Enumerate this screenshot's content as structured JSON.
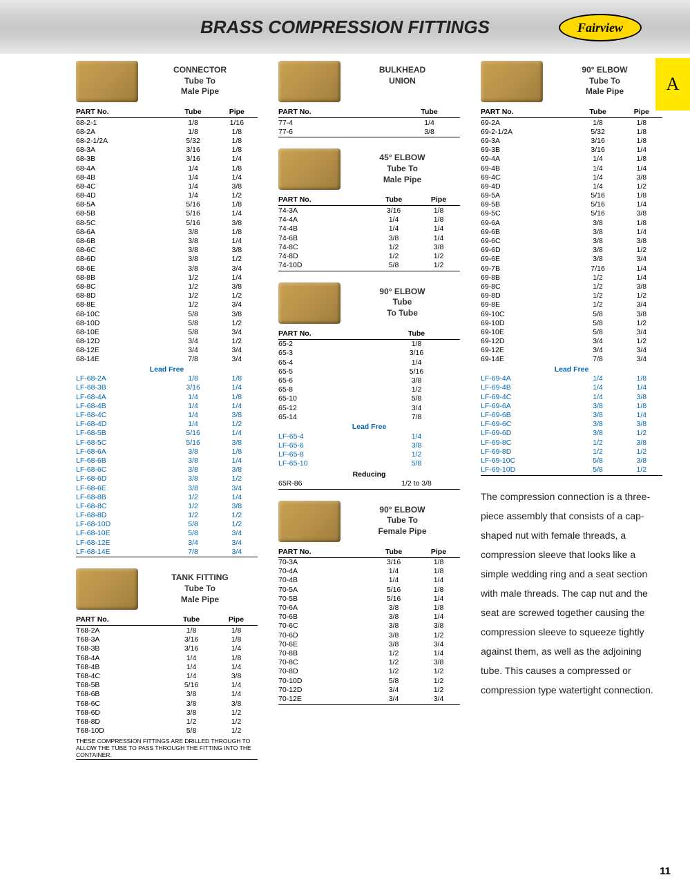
{
  "header": {
    "title": "BRASS COMPRESSION FITTINGS",
    "brand": "Fairview",
    "tab": "A",
    "page_number": "11"
  },
  "labels": {
    "part_no": "PART No.",
    "tube": "Tube",
    "pipe": "Pipe",
    "lead_free": "Lead Free",
    "reducing": "Reducing"
  },
  "connector": {
    "title": "CONNECTOR\nTube To\nMale Pipe",
    "rows": [
      [
        "68-2-1",
        "1/8",
        "1/16"
      ],
      [
        "68-2A",
        "1/8",
        "1/8"
      ],
      [
        "68-2-1/2A",
        "5/32",
        "1/8"
      ],
      [
        "68-3A",
        "3/16",
        "1/8"
      ],
      [
        "68-3B",
        "3/16",
        "1/4"
      ],
      [
        "68-4A",
        "1/4",
        "1/8"
      ],
      [
        "68-4B",
        "1/4",
        "1/4"
      ],
      [
        "68-4C",
        "1/4",
        "3/8"
      ],
      [
        "68-4D",
        "1/4",
        "1/2"
      ],
      [
        "68-5A",
        "5/16",
        "1/8"
      ],
      [
        "68-5B",
        "5/16",
        "1/4"
      ],
      [
        "68-5C",
        "5/16",
        "3/8"
      ],
      [
        "68-6A",
        "3/8",
        "1/8"
      ],
      [
        "68-6B",
        "3/8",
        "1/4"
      ],
      [
        "68-6C",
        "3/8",
        "3/8"
      ],
      [
        "68-6D",
        "3/8",
        "1/2"
      ],
      [
        "68-6E",
        "3/8",
        "3/4"
      ],
      [
        "68-8B",
        "1/2",
        "1/4"
      ],
      [
        "68-8C",
        "1/2",
        "3/8"
      ],
      [
        "68-8D",
        "1/2",
        "1/2"
      ],
      [
        "68-8E",
        "1/2",
        "3/4"
      ],
      [
        "68-10C",
        "5/8",
        "3/8"
      ],
      [
        "68-10D",
        "5/8",
        "1/2"
      ],
      [
        "68-10E",
        "5/8",
        "3/4"
      ],
      [
        "68-12D",
        "3/4",
        "1/2"
      ],
      [
        "68-12E",
        "3/4",
        "3/4"
      ],
      [
        "68-14E",
        "7/8",
        "3/4"
      ]
    ],
    "lf_rows": [
      [
        "LF-68-2A",
        "1/8",
        "1/8"
      ],
      [
        "LF-68-3B",
        "3/16",
        "1/4"
      ],
      [
        "LF-68-4A",
        "1/4",
        "1/8"
      ],
      [
        "LF-68-4B",
        "1/4",
        "1/4"
      ],
      [
        "LF-68-4C",
        "1/4",
        "3/8"
      ],
      [
        "LF-68-4D",
        "1/4",
        "1/2"
      ],
      [
        "LF-68-5B",
        "5/16",
        "1/4"
      ],
      [
        "LF-68-5C",
        "5/16",
        "3/8"
      ],
      [
        "LF-68-6A",
        "3/8",
        "1/8"
      ],
      [
        "LF-68-6B",
        "3/8",
        "1/4"
      ],
      [
        "LF-68-6C",
        "3/8",
        "3/8"
      ],
      [
        "LF-68-6D",
        "3/8",
        "1/2"
      ],
      [
        "LF-68-6E",
        "3/8",
        "3/4"
      ],
      [
        "LF-68-8B",
        "1/2",
        "1/4"
      ],
      [
        "LF-68-8C",
        "1/2",
        "3/8"
      ],
      [
        "LF-68-8D",
        "1/2",
        "1/2"
      ],
      [
        "LF-68-10D",
        "5/8",
        "1/2"
      ],
      [
        "LF-68-10E",
        "5/8",
        "3/4"
      ],
      [
        "LF-68-12E",
        "3/4",
        "3/4"
      ],
      [
        "LF-68-14E",
        "7/8",
        "3/4"
      ]
    ]
  },
  "tank": {
    "title": "TANK FITTING\nTube To\nMale Pipe",
    "rows": [
      [
        "T68-2A",
        "1/8",
        "1/8"
      ],
      [
        "T68-3A",
        "3/16",
        "1/8"
      ],
      [
        "T68-3B",
        "3/16",
        "1/4"
      ],
      [
        "T68-4A",
        "1/4",
        "1/8"
      ],
      [
        "T68-4B",
        "1/4",
        "1/4"
      ],
      [
        "T68-4C",
        "1/4",
        "3/8"
      ],
      [
        "T68-5B",
        "5/16",
        "1/4"
      ],
      [
        "T68-6B",
        "3/8",
        "1/4"
      ],
      [
        "T68-6C",
        "3/8",
        "3/8"
      ],
      [
        "T68-6D",
        "3/8",
        "1/2"
      ],
      [
        "T68-8D",
        "1/2",
        "1/2"
      ],
      [
        "T68-10D",
        "5/8",
        "1/2"
      ]
    ],
    "footnote": "THESE COMPRESSION FITTINGS ARE DRILLED THROUGH TO ALLOW THE TUBE TO PASS THROUGH THE FITTING INTO THE CONTAINER."
  },
  "bulkhead": {
    "title": "BULKHEAD\nUNION",
    "rows": [
      [
        "77-4",
        "1/4"
      ],
      [
        "77-6",
        "3/8"
      ]
    ]
  },
  "elbow45": {
    "title": "45° ELBOW\nTube To\nMale Pipe",
    "rows": [
      [
        "74-3A",
        "3/16",
        "1/8"
      ],
      [
        "74-4A",
        "1/4",
        "1/8"
      ],
      [
        "74-4B",
        "1/4",
        "1/4"
      ],
      [
        "74-6B",
        "3/8",
        "1/4"
      ],
      [
        "74-8C",
        "1/2",
        "3/8"
      ],
      [
        "74-8D",
        "1/2",
        "1/2"
      ],
      [
        "74-10D",
        "5/8",
        "1/2"
      ]
    ]
  },
  "elbow90tube": {
    "title": "90° ELBOW\nTube\nTo Tube",
    "rows": [
      [
        "65-2",
        "1/8"
      ],
      [
        "65-3",
        "3/16"
      ],
      [
        "65-4",
        "1/4"
      ],
      [
        "65-5",
        "5/16"
      ],
      [
        "65-6",
        "3/8"
      ],
      [
        "65-8",
        "1/2"
      ],
      [
        "65-10",
        "5/8"
      ],
      [
        "65-12",
        "3/4"
      ],
      [
        "65-14",
        "7/8"
      ]
    ],
    "lf_rows": [
      [
        "LF-65-4",
        "1/4"
      ],
      [
        "LF-65-6",
        "3/8"
      ],
      [
        "LF-65-8",
        "1/2"
      ],
      [
        "LF-65-10",
        "5/8"
      ]
    ],
    "reducing_rows": [
      [
        "65R-86",
        "1/2 to 3/8"
      ]
    ]
  },
  "elbow90female": {
    "title": "90° ELBOW\nTube To\nFemale Pipe",
    "rows": [
      [
        "70-3A",
        "3/16",
        "1/8"
      ],
      [
        "70-4A",
        "1/4",
        "1/8"
      ],
      [
        "70-4B",
        "1/4",
        "1/4"
      ],
      [
        "70-5A",
        "5/16",
        "1/8"
      ],
      [
        "70-5B",
        "5/16",
        "1/4"
      ],
      [
        "70-6A",
        "3/8",
        "1/8"
      ],
      [
        "70-6B",
        "3/8",
        "1/4"
      ],
      [
        "70-6C",
        "3/8",
        "3/8"
      ],
      [
        "70-6D",
        "3/8",
        "1/2"
      ],
      [
        "70-6E",
        "3/8",
        "3/4"
      ],
      [
        "70-8B",
        "1/2",
        "1/4"
      ],
      [
        "70-8C",
        "1/2",
        "3/8"
      ],
      [
        "70-8D",
        "1/2",
        "1/2"
      ],
      [
        "70-10D",
        "5/8",
        "1/2"
      ],
      [
        "70-12D",
        "3/4",
        "1/2"
      ],
      [
        "70-12E",
        "3/4",
        "3/4"
      ]
    ]
  },
  "elbow90male": {
    "title": "90° ELBOW\nTube To\nMale Pipe",
    "rows": [
      [
        "69-2A",
        "1/8",
        "1/8"
      ],
      [
        "69-2-1/2A",
        "5/32",
        "1/8"
      ],
      [
        "69-3A",
        "3/16",
        "1/8"
      ],
      [
        "69-3B",
        "3/16",
        "1/4"
      ],
      [
        "69-4A",
        "1/4",
        "1/8"
      ],
      [
        "69-4B",
        "1/4",
        "1/4"
      ],
      [
        "69-4C",
        "1/4",
        "3/8"
      ],
      [
        "69-4D",
        "1/4",
        "1/2"
      ],
      [
        "69-5A",
        "5/16",
        "1/8"
      ],
      [
        "69-5B",
        "5/16",
        "1/4"
      ],
      [
        "69-5C",
        "5/16",
        "3/8"
      ],
      [
        "69-6A",
        "3/8",
        "1/8"
      ],
      [
        "69-6B",
        "3/8",
        "1/4"
      ],
      [
        "69-6C",
        "3/8",
        "3/8"
      ],
      [
        "69-6D",
        "3/8",
        "1/2"
      ],
      [
        "69-6E",
        "3/8",
        "3/4"
      ],
      [
        "69-7B",
        "7/16",
        "1/4"
      ],
      [
        "69-8B",
        "1/2",
        "1/4"
      ],
      [
        "69-8C",
        "1/2",
        "3/8"
      ],
      [
        "69-8D",
        "1/2",
        "1/2"
      ],
      [
        "69-8E",
        "1/2",
        "3/4"
      ],
      [
        "69-10C",
        "5/8",
        "3/8"
      ],
      [
        "69-10D",
        "5/8",
        "1/2"
      ],
      [
        "69-10E",
        "5/8",
        "3/4"
      ],
      [
        "69-12D",
        "3/4",
        "1/2"
      ],
      [
        "69-12E",
        "3/4",
        "3/4"
      ],
      [
        "69-14E",
        "7/8",
        "3/4"
      ]
    ],
    "lf_rows": [
      [
        "LF-69-4A",
        "1/4",
        "1/8"
      ],
      [
        "LF-69-4B",
        "1/4",
        "1/4"
      ],
      [
        "LF-69-4C",
        "1/4",
        "3/8"
      ],
      [
        "LF-69-6A",
        "3/8",
        "1/8"
      ],
      [
        "LF-69-6B",
        "3/8",
        "1/4"
      ],
      [
        "LF-69-6C",
        "3/8",
        "3/8"
      ],
      [
        "LF-69-6D",
        "3/8",
        "1/2"
      ],
      [
        "LF-69-8C",
        "1/2",
        "3/8"
      ],
      [
        "LF-69-8D",
        "1/2",
        "1/2"
      ],
      [
        "LF-69-10C",
        "5/8",
        "3/8"
      ],
      [
        "LF-69-10D",
        "5/8",
        "1/2"
      ]
    ]
  },
  "description": "The compression connection is a three-piece assembly that consists of a cap-shaped nut with female threads, a compression sleeve that looks like a simple wedding ring and a seat section with male threads. The cap nut and the seat are screwed together causing the compression sleeve to squeeze tightly against them, as well as the adjoining tube. This causes a compressed or compression type watertight connection."
}
